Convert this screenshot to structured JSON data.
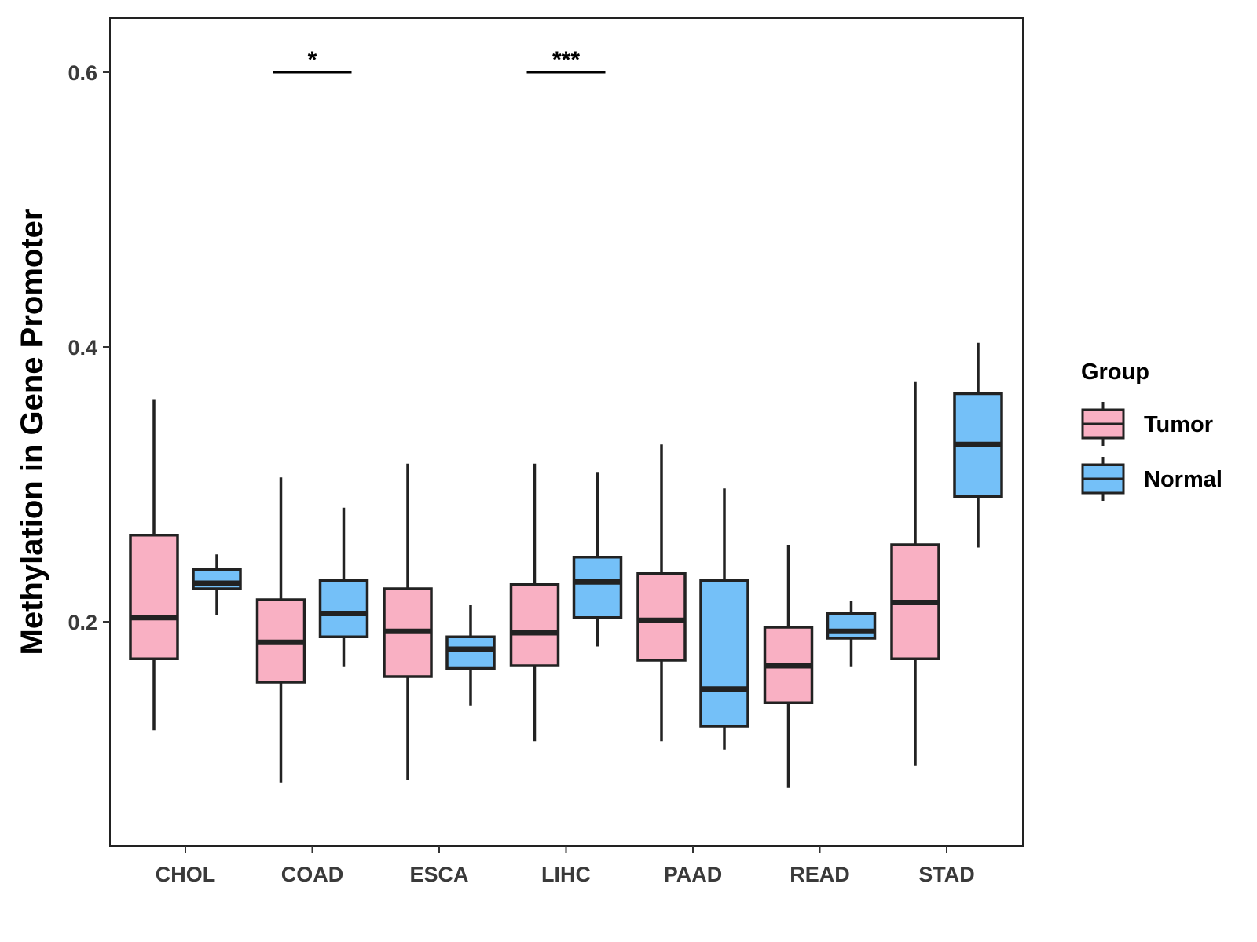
{
  "chart_data": {
    "type": "boxplot",
    "title": "",
    "xlabel": "",
    "ylabel": "Methylation in Gene Promoter",
    "ylim": [
      0.04,
      0.64
    ],
    "yticks": [
      0.2,
      0.4,
      0.6
    ],
    "ytick_labels": [
      "0.2",
      "0.4",
      "0.6"
    ],
    "categories": [
      "CHOL",
      "COAD",
      "ESCA",
      "LIHC",
      "PAAD",
      "READ",
      "STAD"
    ],
    "legend": {
      "title": "Group",
      "position": "right"
    },
    "series": [
      {
        "name": "Tumor",
        "color": "#f9b0c3",
        "boxes": [
          {
            "category": "CHOL",
            "whisker_low": 0.121,
            "q1": 0.173,
            "median": 0.203,
            "q3": 0.263,
            "whisker_high": 0.362
          },
          {
            "category": "COAD",
            "whisker_low": 0.083,
            "q1": 0.156,
            "median": 0.185,
            "q3": 0.216,
            "whisker_high": 0.305
          },
          {
            "category": "ESCA",
            "whisker_low": 0.085,
            "q1": 0.16,
            "median": 0.193,
            "q3": 0.224,
            "whisker_high": 0.315
          },
          {
            "category": "LIHC",
            "whisker_low": 0.113,
            "q1": 0.168,
            "median": 0.192,
            "q3": 0.227,
            "whisker_high": 0.315
          },
          {
            "category": "PAAD",
            "whisker_low": 0.113,
            "q1": 0.172,
            "median": 0.201,
            "q3": 0.235,
            "whisker_high": 0.329
          },
          {
            "category": "READ",
            "whisker_low": 0.079,
            "q1": 0.141,
            "median": 0.168,
            "q3": 0.196,
            "whisker_high": 0.256
          },
          {
            "category": "STAD",
            "whisker_low": 0.095,
            "q1": 0.173,
            "median": 0.214,
            "q3": 0.256,
            "whisker_high": 0.375
          }
        ]
      },
      {
        "name": "Normal",
        "color": "#74c0f8",
        "boxes": [
          {
            "category": "CHOL",
            "whisker_low": 0.205,
            "q1": 0.224,
            "median": 0.228,
            "q3": 0.238,
            "whisker_high": 0.249
          },
          {
            "category": "COAD",
            "whisker_low": 0.167,
            "q1": 0.189,
            "median": 0.206,
            "q3": 0.23,
            "whisker_high": 0.283
          },
          {
            "category": "ESCA",
            "whisker_low": 0.139,
            "q1": 0.166,
            "median": 0.18,
            "q3": 0.189,
            "whisker_high": 0.212
          },
          {
            "category": "LIHC",
            "whisker_low": 0.182,
            "q1": 0.203,
            "median": 0.229,
            "q3": 0.247,
            "whisker_high": 0.309
          },
          {
            "category": "PAAD",
            "whisker_low": 0.107,
            "q1": 0.124,
            "median": 0.151,
            "q3": 0.23,
            "whisker_high": 0.297
          },
          {
            "category": "READ",
            "whisker_low": 0.167,
            "q1": 0.188,
            "median": 0.193,
            "q3": 0.206,
            "whisker_high": 0.215
          },
          {
            "category": "STAD",
            "whisker_low": 0.254,
            "q1": 0.291,
            "median": 0.329,
            "q3": 0.366,
            "whisker_high": 0.403
          }
        ]
      }
    ],
    "annotations": [
      {
        "category": "COAD",
        "label": "*",
        "y": 0.6
      },
      {
        "category": "LIHC",
        "label": "***",
        "y": 0.6
      }
    ]
  }
}
